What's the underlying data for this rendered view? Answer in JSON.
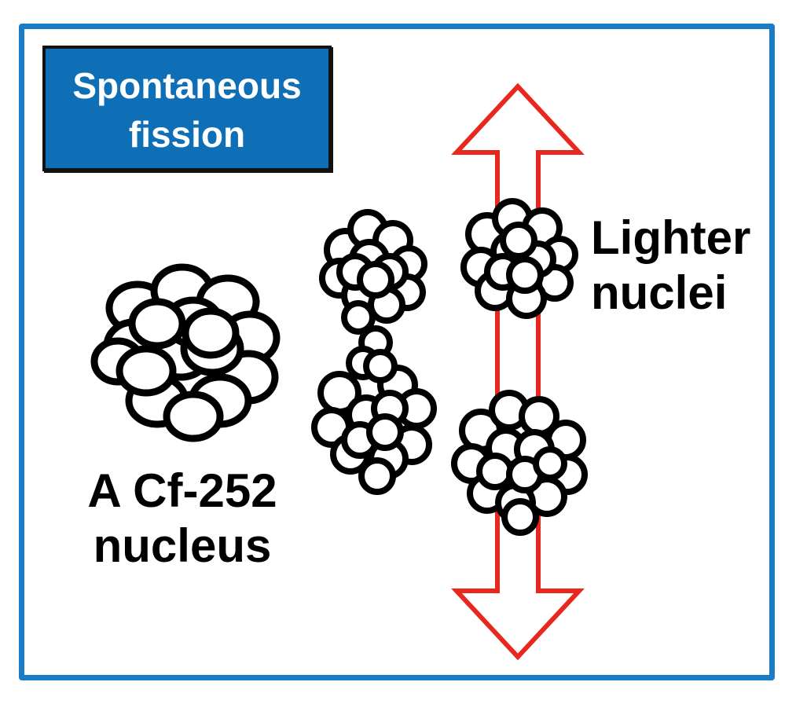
{
  "title": {
    "line1": "Spontaneous",
    "line2": "fission"
  },
  "labels": {
    "nucleus": {
      "line1": "A Cf-252",
      "line2": "nucleus"
    },
    "products": {
      "line1": "Lighter",
      "line2": "nuclei"
    }
  },
  "colors": {
    "frame": "#1a7bc6",
    "title_bg": "#0f6fb6",
    "arrow": "#e8281e",
    "ink": "#000000"
  },
  "icons": [
    "nucleus-icon",
    "splitting-nucleus-icon",
    "lighter-nucleus-icon",
    "double-arrow-icon"
  ]
}
